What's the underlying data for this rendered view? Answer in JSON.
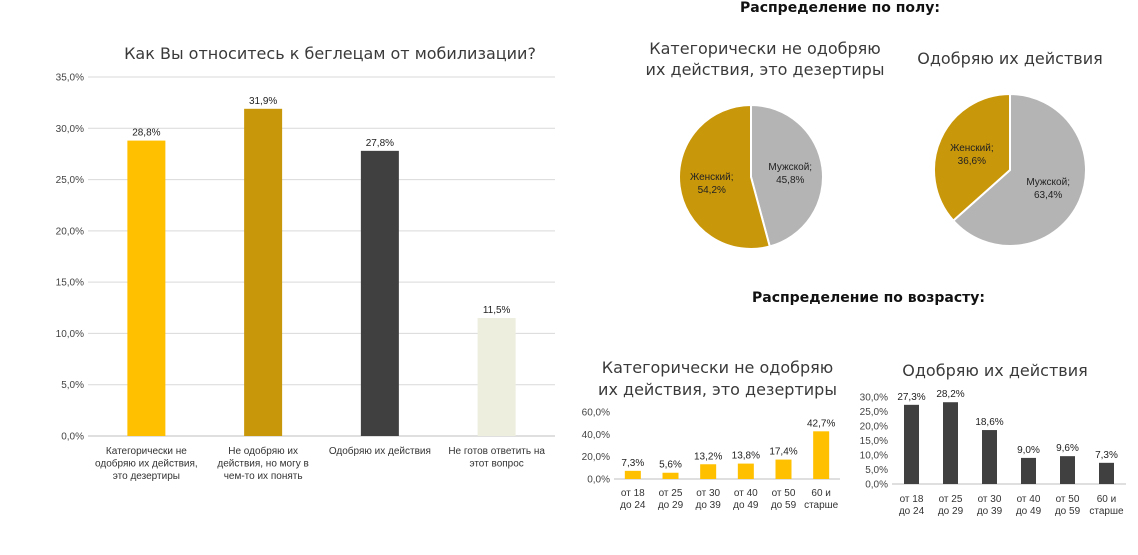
{
  "sections": {
    "gender": "Распределение по полу:",
    "age": "Распределение по возрасту:"
  },
  "chart_data": [
    {
      "type": "bar",
      "title": "Как Вы относитесь к беглецам от мобилизации?",
      "categories": [
        "Категорически не одобряю их действия, это дезертиры",
        "Не одобряю их действия, но могу в чем-то их понять",
        "Одобряю их действия",
        "Не готов ответить на этот вопрос"
      ],
      "category_lines": [
        [
          "Категорически не",
          "одобряю их действия,",
          "это дезертиры"
        ],
        [
          "Не одобряю их",
          "действия, но могу в",
          "чем-то их понять"
        ],
        [
          "Одобряю их действия"
        ],
        [
          "Не готов ответить на",
          "этот вопрос"
        ]
      ],
      "values": [
        28.8,
        31.9,
        27.8,
        11.5
      ],
      "value_labels": [
        "28,8%",
        "31,9%",
        "27,8%",
        "11,5%"
      ],
      "colors": [
        "#ffc000",
        "#c9970a",
        "#404040",
        "#eeeedf"
      ],
      "ylim": [
        0,
        35
      ],
      "yticks": [
        "0,0%",
        "5,0%",
        "10,0%",
        "15,0%",
        "20,0%",
        "25,0%",
        "30,0%",
        "35,0%"
      ],
      "grid": true
    },
    {
      "type": "pie",
      "title": "Категорически не одобряю их действия, это дезертиры",
      "title_lines": [
        "Категорически не одобряю",
        "их действия, это дезертиры"
      ],
      "slices": [
        {
          "name": "Мужской",
          "value": 45.8,
          "label": "45,8%",
          "color": "#b4b4b4"
        },
        {
          "name": "Женский",
          "value": 54.2,
          "label": "54,2%",
          "color": "#c9970a"
        }
      ]
    },
    {
      "type": "pie",
      "title": "Одобряю их действия",
      "title_lines": [
        "Одобряю их действия"
      ],
      "slices": [
        {
          "name": "Мужской",
          "value": 63.4,
          "label": "63,4%",
          "color": "#b4b4b4"
        },
        {
          "name": "Женский",
          "value": 36.6,
          "label": "36,6%",
          "color": "#c9970a"
        }
      ]
    },
    {
      "type": "bar",
      "title": "Категорически не одобряю их действия, это дезертиры",
      "title_lines": [
        "Категорически не одобряю",
        "их действия, это дезертиры"
      ],
      "categories": [
        "от 18 до 24",
        "от 25 до 29",
        "от 30 до 39",
        "от 40 до 49",
        "от 50 до 59",
        "60 и старше"
      ],
      "category_lines": [
        [
          "от 18",
          "до 24"
        ],
        [
          "от 25",
          "до 29"
        ],
        [
          "от 30",
          "до 39"
        ],
        [
          "от 40",
          "до 49"
        ],
        [
          "от 50",
          "до 59"
        ],
        [
          "60 и",
          "старше"
        ]
      ],
      "values": [
        7.3,
        5.6,
        13.2,
        13.8,
        17.4,
        42.7
      ],
      "value_labels": [
        "7,3%",
        "5,6%",
        "13,2%",
        "13,8%",
        "17,4%",
        "42,7%"
      ],
      "color": "#ffc000",
      "ylim": [
        0,
        60
      ],
      "yticks": [
        "0,0%",
        "20,0%",
        "40,0%",
        "60,0%"
      ],
      "grid": false
    },
    {
      "type": "bar",
      "title": "Одобряю их действия",
      "title_lines": [
        "Одобряю их действия"
      ],
      "categories": [
        "от 18 до 24",
        "от 25 до 29",
        "от 30 до 39",
        "от 40 до 49",
        "от 50 до 59",
        "60 и старше"
      ],
      "category_lines": [
        [
          "от 18",
          "до 24"
        ],
        [
          "от 25",
          "до 29"
        ],
        [
          "от 30",
          "до 39"
        ],
        [
          "от 40",
          "до 49"
        ],
        [
          "от 50",
          "до 59"
        ],
        [
          "60 и",
          "старше"
        ]
      ],
      "values": [
        27.3,
        28.2,
        18.6,
        9.0,
        9.6,
        7.3
      ],
      "value_labels": [
        "27,3%",
        "28,2%",
        "18,6%",
        "9,0%",
        "9,6%",
        "7,3%"
      ],
      "color": "#404040",
      "ylim": [
        0,
        30
      ],
      "yticks": [
        "0,0%",
        "5,0%",
        "10,0%",
        "15,0%",
        "20,0%",
        "25,0%",
        "30,0%"
      ],
      "grid": false
    }
  ]
}
